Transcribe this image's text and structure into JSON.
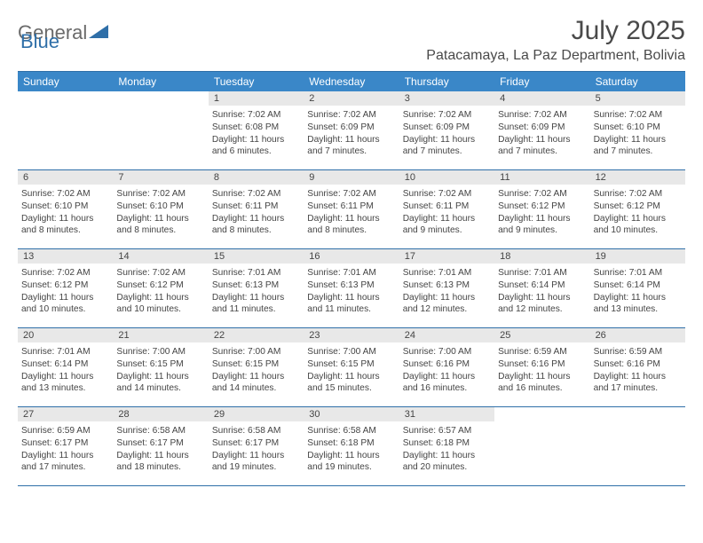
{
  "logo": {
    "general": "General",
    "blue": "Blue"
  },
  "title": "July 2025",
  "location": "Patacamaya, La Paz Department, Bolivia",
  "colors": {
    "header_bg": "#3a87c8",
    "divider": "#2f6fa8",
    "daynum_bg": "#e8e8e8",
    "text": "#444444",
    "logo_gray": "#6a6a6a",
    "logo_blue": "#2f6fa8"
  },
  "day_names": [
    "Sunday",
    "Monday",
    "Tuesday",
    "Wednesday",
    "Thursday",
    "Friday",
    "Saturday"
  ],
  "weeks": [
    [
      null,
      null,
      {
        "n": "1",
        "sr": "7:02 AM",
        "ss": "6:08 PM",
        "dl": "11 hours and 6 minutes."
      },
      {
        "n": "2",
        "sr": "7:02 AM",
        "ss": "6:09 PM",
        "dl": "11 hours and 7 minutes."
      },
      {
        "n": "3",
        "sr": "7:02 AM",
        "ss": "6:09 PM",
        "dl": "11 hours and 7 minutes."
      },
      {
        "n": "4",
        "sr": "7:02 AM",
        "ss": "6:09 PM",
        "dl": "11 hours and 7 minutes."
      },
      {
        "n": "5",
        "sr": "7:02 AM",
        "ss": "6:10 PM",
        "dl": "11 hours and 7 minutes."
      }
    ],
    [
      {
        "n": "6",
        "sr": "7:02 AM",
        "ss": "6:10 PM",
        "dl": "11 hours and 8 minutes."
      },
      {
        "n": "7",
        "sr": "7:02 AM",
        "ss": "6:10 PM",
        "dl": "11 hours and 8 minutes."
      },
      {
        "n": "8",
        "sr": "7:02 AM",
        "ss": "6:11 PM",
        "dl": "11 hours and 8 minutes."
      },
      {
        "n": "9",
        "sr": "7:02 AM",
        "ss": "6:11 PM",
        "dl": "11 hours and 8 minutes."
      },
      {
        "n": "10",
        "sr": "7:02 AM",
        "ss": "6:11 PM",
        "dl": "11 hours and 9 minutes."
      },
      {
        "n": "11",
        "sr": "7:02 AM",
        "ss": "6:12 PM",
        "dl": "11 hours and 9 minutes."
      },
      {
        "n": "12",
        "sr": "7:02 AM",
        "ss": "6:12 PM",
        "dl": "11 hours and 10 minutes."
      }
    ],
    [
      {
        "n": "13",
        "sr": "7:02 AM",
        "ss": "6:12 PM",
        "dl": "11 hours and 10 minutes."
      },
      {
        "n": "14",
        "sr": "7:02 AM",
        "ss": "6:12 PM",
        "dl": "11 hours and 10 minutes."
      },
      {
        "n": "15",
        "sr": "7:01 AM",
        "ss": "6:13 PM",
        "dl": "11 hours and 11 minutes."
      },
      {
        "n": "16",
        "sr": "7:01 AM",
        "ss": "6:13 PM",
        "dl": "11 hours and 11 minutes."
      },
      {
        "n": "17",
        "sr": "7:01 AM",
        "ss": "6:13 PM",
        "dl": "11 hours and 12 minutes."
      },
      {
        "n": "18",
        "sr": "7:01 AM",
        "ss": "6:14 PM",
        "dl": "11 hours and 12 minutes."
      },
      {
        "n": "19",
        "sr": "7:01 AM",
        "ss": "6:14 PM",
        "dl": "11 hours and 13 minutes."
      }
    ],
    [
      {
        "n": "20",
        "sr": "7:01 AM",
        "ss": "6:14 PM",
        "dl": "11 hours and 13 minutes."
      },
      {
        "n": "21",
        "sr": "7:00 AM",
        "ss": "6:15 PM",
        "dl": "11 hours and 14 minutes."
      },
      {
        "n": "22",
        "sr": "7:00 AM",
        "ss": "6:15 PM",
        "dl": "11 hours and 14 minutes."
      },
      {
        "n": "23",
        "sr": "7:00 AM",
        "ss": "6:15 PM",
        "dl": "11 hours and 15 minutes."
      },
      {
        "n": "24",
        "sr": "7:00 AM",
        "ss": "6:16 PM",
        "dl": "11 hours and 16 minutes."
      },
      {
        "n": "25",
        "sr": "6:59 AM",
        "ss": "6:16 PM",
        "dl": "11 hours and 16 minutes."
      },
      {
        "n": "26",
        "sr": "6:59 AM",
        "ss": "6:16 PM",
        "dl": "11 hours and 17 minutes."
      }
    ],
    [
      {
        "n": "27",
        "sr": "6:59 AM",
        "ss": "6:17 PM",
        "dl": "11 hours and 17 minutes."
      },
      {
        "n": "28",
        "sr": "6:58 AM",
        "ss": "6:17 PM",
        "dl": "11 hours and 18 minutes."
      },
      {
        "n": "29",
        "sr": "6:58 AM",
        "ss": "6:17 PM",
        "dl": "11 hours and 19 minutes."
      },
      {
        "n": "30",
        "sr": "6:58 AM",
        "ss": "6:18 PM",
        "dl": "11 hours and 19 minutes."
      },
      {
        "n": "31",
        "sr": "6:57 AM",
        "ss": "6:18 PM",
        "dl": "11 hours and 20 minutes."
      },
      null,
      null
    ]
  ],
  "labels": {
    "sunrise": "Sunrise:",
    "sunset": "Sunset:",
    "daylight": "Daylight:"
  }
}
